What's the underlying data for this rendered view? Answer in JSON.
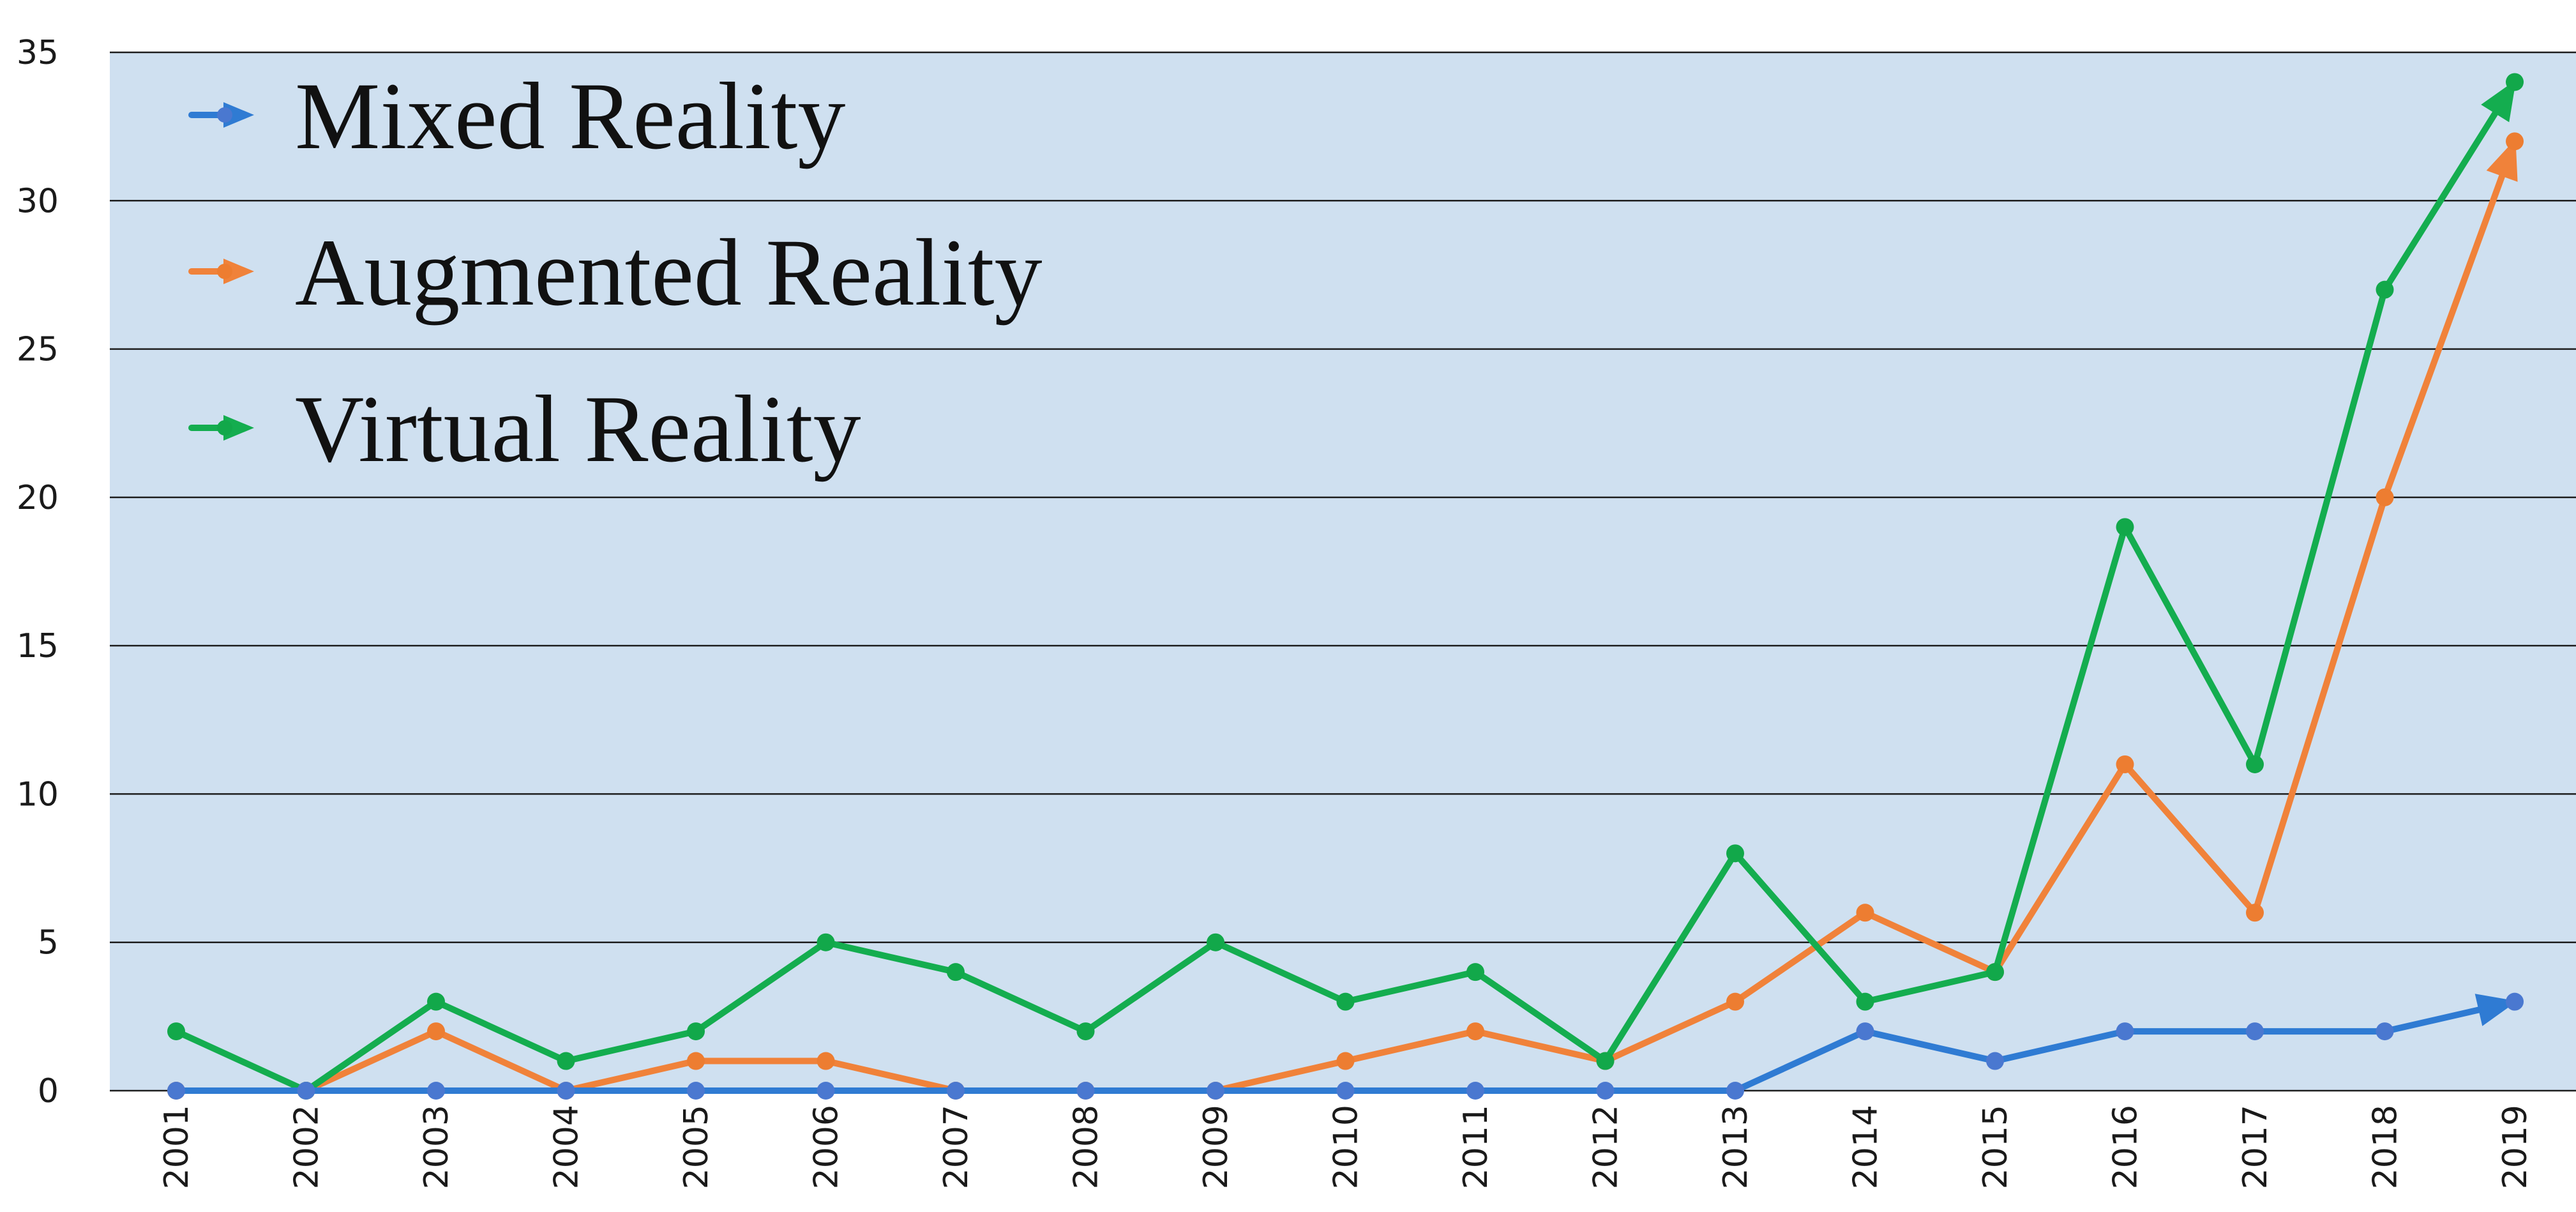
{
  "chart_data": {
    "type": "line",
    "x": [
      "2001",
      "2002",
      "2003",
      "2004",
      "2005",
      "2006",
      "2007",
      "2008",
      "2009",
      "2010",
      "2011",
      "2012",
      "2013",
      "2014",
      "2015",
      "2016",
      "2017",
      "2018",
      "2019"
    ],
    "y_ticks": [
      "0",
      "5",
      "10",
      "15",
      "20",
      "25",
      "30",
      "35"
    ],
    "ylim": [
      0,
      35
    ],
    "grid": true,
    "legend_position": "top-left",
    "background_color": "#cfe0f0",
    "series": [
      {
        "name": "Mixed Reality",
        "color": "#2f7bd3",
        "marker_color": "#4a78d0",
        "values": [
          0,
          0,
          0,
          0,
          0,
          0,
          0,
          0,
          0,
          0,
          0,
          0,
          0,
          2,
          1,
          2,
          2,
          2,
          3
        ]
      },
      {
        "name": "Augmented Reality",
        "color": "#f0823a",
        "marker_color": "#ed7d31",
        "values": [
          0,
          0,
          2,
          0,
          1,
          1,
          0,
          0,
          0,
          1,
          2,
          1,
          3,
          6,
          4,
          11,
          6,
          20,
          32
        ]
      },
      {
        "name": "Virtual Reality",
        "color": "#14ad4f",
        "marker_color": "#12a84a",
        "values": [
          2,
          0,
          3,
          1,
          2,
          5,
          4,
          2,
          5,
          3,
          4,
          1,
          8,
          3,
          4,
          19,
          11,
          27,
          34
        ]
      }
    ]
  }
}
